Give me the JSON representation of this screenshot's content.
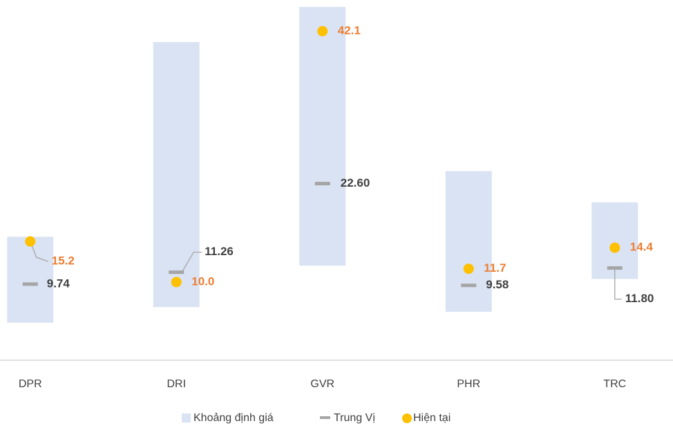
{
  "chart_data": {
    "type": "range",
    "categories": [
      "DPR",
      "DRI",
      "GVR",
      "PHR",
      "TRC"
    ],
    "series": [
      {
        "name": "Khoảng định giá",
        "color": "#dae3f3",
        "low": [
          4.8,
          6.8,
          12.1,
          6.2,
          10.4
        ],
        "high": [
          15.8,
          40.7,
          45.2,
          24.2,
          20.2
        ]
      },
      {
        "name": "Trung Vị",
        "color": "#a5a5a5",
        "label_color": "#404040",
        "values": [
          9.74,
          11.26,
          22.6,
          9.58,
          11.8
        ],
        "value_labels": [
          "9.74",
          "11.26",
          "22.60",
          "9.58",
          "11.80"
        ]
      },
      {
        "name": "Hiện tại",
        "color": "#ffc000",
        "label_color": "#ed7d31",
        "values": [
          15.2,
          10,
          42.1,
          11.7,
          14.4
        ],
        "value_labels": [
          "15.2",
          "10.0",
          "42.1",
          "11.7",
          "14.4"
        ]
      }
    ],
    "ylim": [
      0,
      46
    ]
  }
}
